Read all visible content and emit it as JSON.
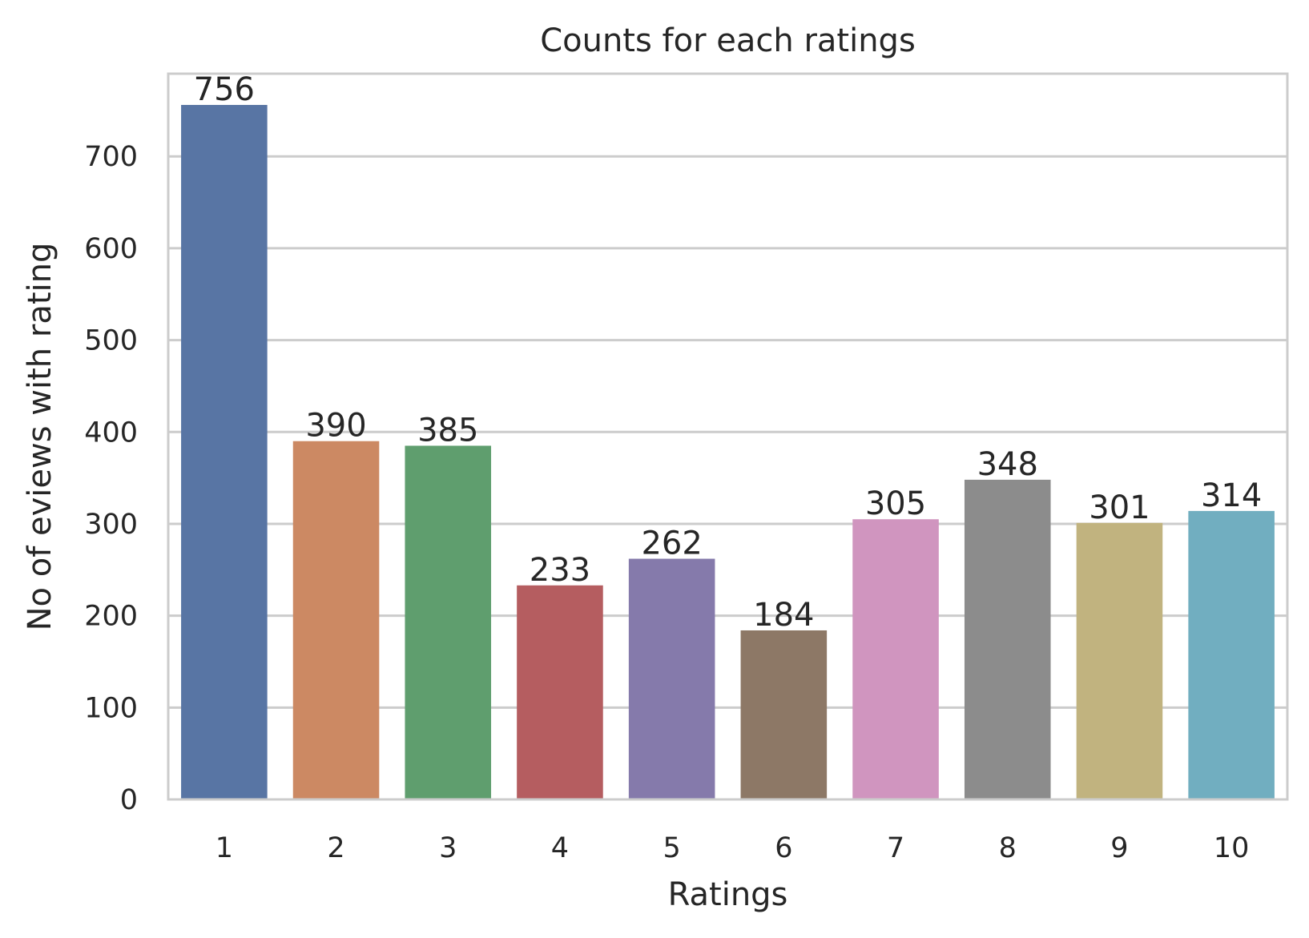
{
  "chart_data": {
    "type": "bar",
    "title": "Counts for each ratings",
    "xlabel": "Ratings",
    "ylabel": "No of eviews with rating",
    "categories": [
      "1",
      "2",
      "3",
      "4",
      "5",
      "6",
      "7",
      "8",
      "9",
      "10"
    ],
    "values": [
      756,
      390,
      385,
      233,
      262,
      184,
      305,
      348,
      301,
      314
    ],
    "data_labels": [
      "756",
      "390",
      "385",
      "233",
      "262",
      "184",
      "305",
      "348",
      "301",
      "314"
    ],
    "colors": [
      "#5875a4",
      "#cc8963",
      "#5f9e6e",
      "#b55d60",
      "#857aab",
      "#8d7866",
      "#d095bf",
      "#8c8c8c",
      "#c1b37f",
      "#71aec0"
    ],
    "ylim": [
      0,
      790
    ],
    "yticks": [
      0,
      100,
      200,
      300,
      400,
      500,
      600,
      700
    ],
    "ytick_labels": [
      "0",
      "100",
      "200",
      "300",
      "400",
      "500",
      "600",
      "700"
    ],
    "grid": true,
    "legend": "none"
  }
}
